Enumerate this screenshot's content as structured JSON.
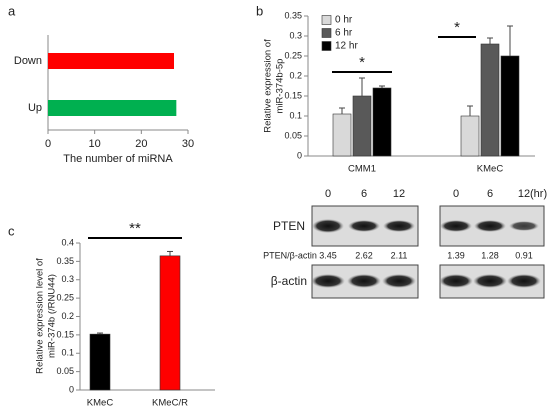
{
  "panel_labels": [
    "a",
    "b",
    "c"
  ],
  "chart_data": [
    {
      "type": "barh",
      "categories": [
        "Down",
        "Up"
      ],
      "values": [
        27,
        27.5
      ],
      "colors": [
        "#ff0000",
        "#00b050"
      ],
      "xlabel": "The number of miRNA",
      "xlim": [
        0,
        30
      ],
      "xticks": [
        0,
        10,
        20,
        30
      ]
    },
    {
      "type": "bar",
      "ylabel": [
        "Relative expression of",
        "miR-374b-5p"
      ],
      "categories": [
        "CMM1",
        "KMeC"
      ],
      "series": [
        {
          "name": "0 hr",
          "color": "#d9d9d9",
          "values": [
            0.105,
            0.1
          ],
          "errors": [
            0.015,
            0.025
          ]
        },
        {
          "name": "6 hr",
          "color": "#595959",
          "values": [
            0.15,
            0.28
          ],
          "errors": [
            0.045,
            0.015
          ]
        },
        {
          "name": "12 hr",
          "color": "#000000",
          "values": [
            0.17,
            0.25
          ],
          "errors": [
            0.005,
            0.075
          ]
        }
      ],
      "ylim": [
        0,
        0.35
      ],
      "yticks": [
        0,
        0.05,
        0.1,
        0.15,
        0.2,
        0.25,
        0.3,
        0.35
      ],
      "annotations": [
        "*",
        "*"
      ],
      "legend": "upper-left"
    },
    {
      "type": "bar",
      "ylabel": [
        "Relative expression level of",
        "miR-374b (/RNU44)"
      ],
      "categories": [
        "KMeC",
        "KMeC/R"
      ],
      "series": [
        {
          "colors": [
            "#000000",
            "#ff0000"
          ],
          "values": [
            0.152,
            0.365
          ],
          "errors": [
            0.003,
            0.012
          ]
        }
      ],
      "ylim": [
        0,
        0.4
      ],
      "yticks": [
        0,
        0.05,
        0.1,
        0.15,
        0.2,
        0.25,
        0.3,
        0.35,
        0.4
      ],
      "annotations": [
        "**"
      ]
    }
  ],
  "blot": {
    "time_unit": "(hr)",
    "groups": [
      {
        "times": [
          0,
          6,
          12
        ],
        "ratios": [
          3.45,
          2.62,
          2.11
        ]
      },
      {
        "times": [
          0,
          6,
          12
        ],
        "ratios": [
          1.39,
          1.28,
          0.91
        ]
      }
    ],
    "rows": [
      "PTEN",
      "PTEN/β-actin",
      "β-actin"
    ]
  }
}
